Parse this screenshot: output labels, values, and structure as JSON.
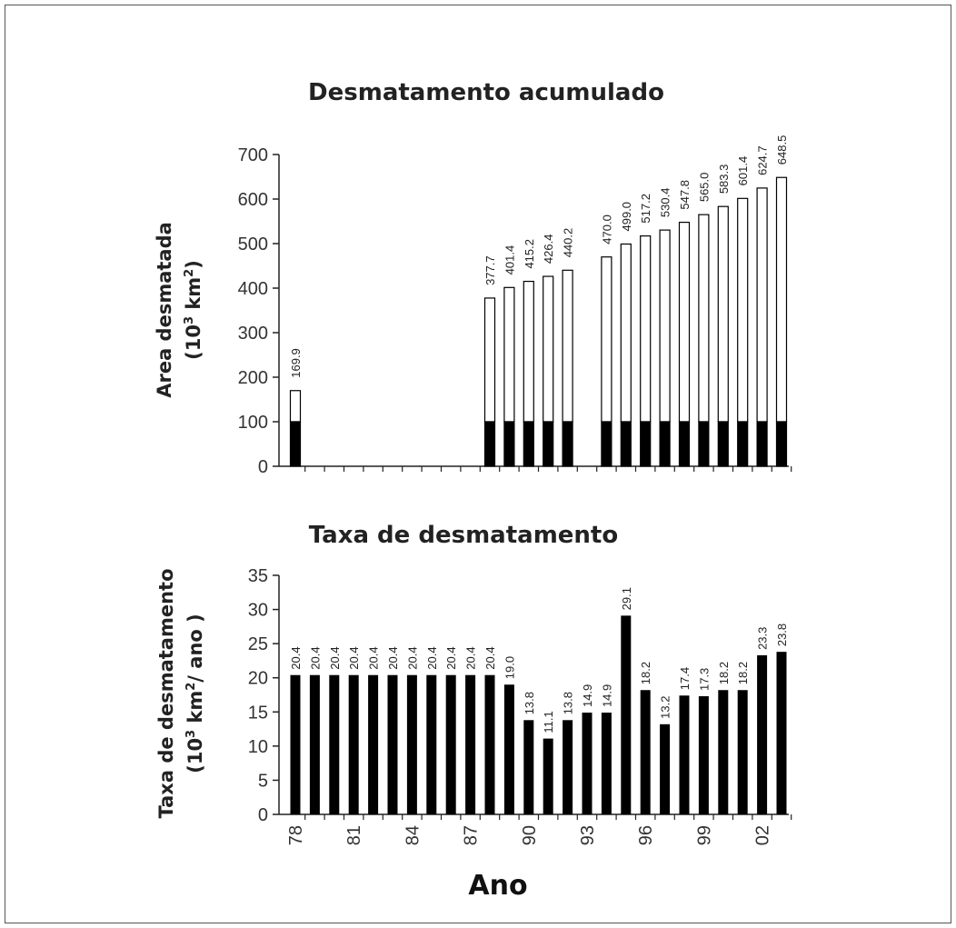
{
  "chart_data": [
    {
      "type": "bar",
      "title": "Desmatamento acumulado",
      "ylabel_line1": "Area desmatada",
      "ylabel_line2_base": "(10",
      "ylabel_line2_exp": "3",
      "ylabel_line2_mid": " km",
      "ylabel_line2_exp2": "2",
      "ylabel_line2_end": ")",
      "ylim": [
        0,
        700
      ],
      "yticks": [
        0,
        100,
        200,
        300,
        400,
        500,
        600,
        700
      ],
      "x": [
        1978,
        1988,
        1989,
        1990,
        1991,
        1992,
        1994,
        1995,
        1996,
        1997,
        1998,
        1999,
        2000,
        2001,
        2002,
        2003
      ],
      "values": [
        169.9,
        377.7,
        401.4,
        415.2,
        426.4,
        440.2,
        470.0,
        499.0,
        517.2,
        530.4,
        547.8,
        565.0,
        583.3,
        601.4,
        624.7,
        648.5
      ],
      "labels": [
        "169.9",
        "377.7",
        "401.4",
        "415.2",
        "426.4",
        "440.2",
        "470.0",
        "499.0",
        "517.2",
        "530.4",
        "547.8",
        "565.0",
        "583.3",
        "601.4",
        "624.7",
        "648.5"
      ],
      "base_value": 100,
      "colors": {
        "base": "#000000",
        "increment": "#ffffff"
      }
    },
    {
      "type": "bar",
      "title": "Taxa de desmatamento",
      "ylabel_line1": "Taxa de desmatamento",
      "ylabel_line2_base": "(10",
      "ylabel_line2_exp": "3",
      "ylabel_line2_mid": " km",
      "ylabel_line2_exp2": "2",
      "ylabel_line2_end": "/ ano )",
      "ylim": [
        0,
        35
      ],
      "yticks": [
        0,
        5,
        10,
        15,
        20,
        25,
        30,
        35
      ],
      "x": [
        1978,
        1979,
        1980,
        1981,
        1982,
        1983,
        1984,
        1985,
        1986,
        1987,
        1988,
        1989,
        1990,
        1991,
        1992,
        1993,
        1994,
        1995,
        1996,
        1997,
        1998,
        1999,
        2000,
        2001,
        2002,
        2003
      ],
      "values": [
        20.4,
        20.4,
        20.4,
        20.4,
        20.4,
        20.4,
        20.4,
        20.4,
        20.4,
        20.4,
        20.4,
        19.0,
        13.8,
        11.1,
        13.8,
        14.9,
        14.9,
        29.1,
        18.2,
        13.2,
        17.4,
        17.3,
        18.2,
        18.2,
        23.3,
        23.8
      ],
      "labels": [
        "20.4",
        "20.4",
        "20.4",
        "20.4",
        "20.4",
        "20.4",
        "20.4",
        "20.4",
        "20.4",
        "20.4",
        "20.4",
        "19.0",
        "13.8",
        "11.1",
        "13.8",
        "14.9",
        "14.9",
        "29.1",
        "18.2",
        "13.2",
        "17.4",
        "17.3",
        "18.2",
        "18.2",
        "23.3",
        "23.8"
      ],
      "xticklabels": [
        "78",
        "81",
        "84",
        "87",
        "90",
        "93",
        "96",
        "99",
        "02"
      ],
      "xtitle": "Ano",
      "colors": {
        "bar": "#000000"
      }
    }
  ]
}
